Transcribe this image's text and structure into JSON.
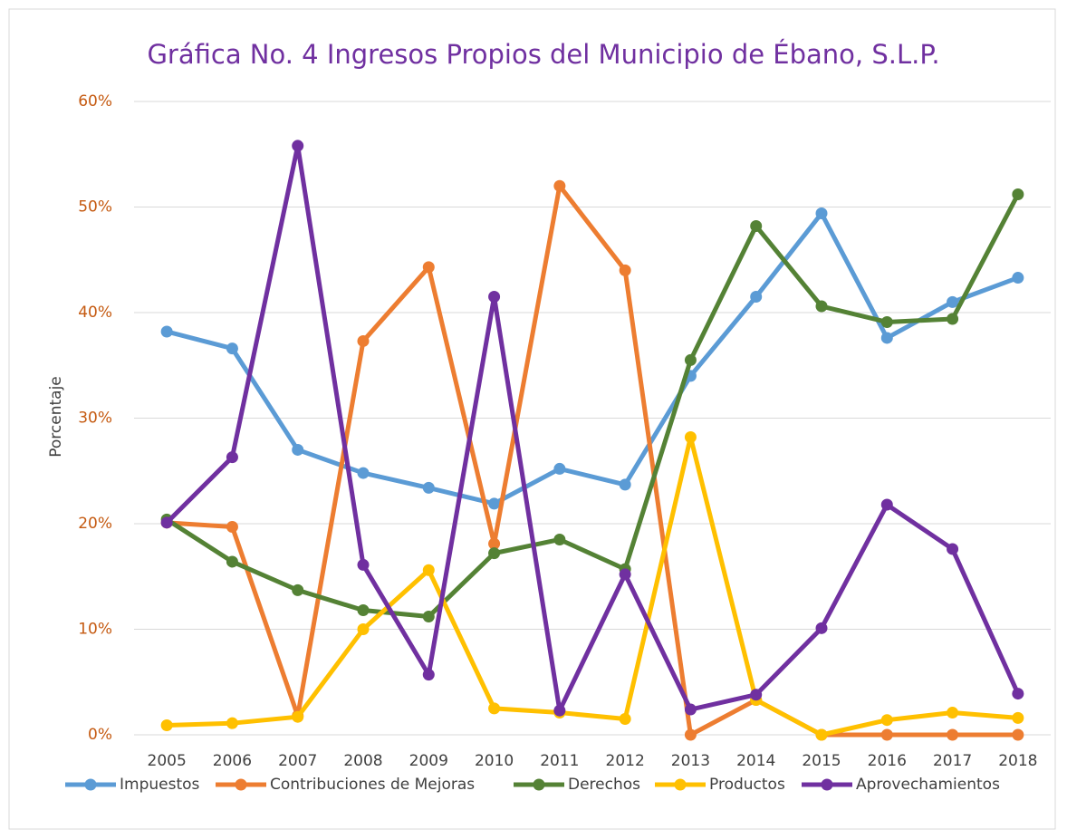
{
  "chart_data": {
    "type": "line",
    "title": "Gráfica No. 4 Ingresos Propios del Municipio de Ébano, S.L.P.",
    "y_label": "Porcentaje",
    "categories": [
      "2005",
      "2006",
      "2007",
      "2008",
      "2009",
      "2010",
      "2011",
      "2012",
      "2013",
      "2014",
      "2015",
      "2016",
      "2017",
      "2018"
    ],
    "series": [
      {
        "name": "Impuestos",
        "color": "#5b9bd5",
        "values": [
          38.2,
          36.6,
          27.0,
          24.8,
          23.4,
          21.9,
          25.2,
          23.7,
          34.0,
          41.5,
          49.4,
          37.6,
          41.0,
          43.3
        ]
      },
      {
        "name": "Contribuciones de Mejoras",
        "color": "#ed7d31",
        "values": [
          20.1,
          19.7,
          1.8,
          37.3,
          44.3,
          18.1,
          52.0,
          44.0,
          0,
          3.3,
          0,
          0,
          0,
          0
        ]
      },
      {
        "name": "Derechos",
        "color": "#548235",
        "values": [
          20.4,
          16.4,
          13.7,
          11.8,
          11.2,
          17.2,
          18.5,
          15.7,
          35.5,
          48.2,
          40.6,
          39.1,
          39.4,
          51.2
        ]
      },
      {
        "name": "Productos",
        "color": "#ffc000",
        "values": [
          0.9,
          1.1,
          1.7,
          10.0,
          15.6,
          2.5,
          2.1,
          1.5,
          28.2,
          3.3,
          0,
          1.4,
          2.1,
          1.6
        ]
      },
      {
        "name": "Aprovechamientos",
        "color": "#7030a0",
        "values": [
          20.1,
          26.3,
          55.8,
          16.1,
          5.7,
          41.5,
          2.3,
          15.2,
          2.4,
          3.8,
          10.1,
          21.8,
          17.6,
          3.9
        ]
      }
    ],
    "ylim": [
      0,
      60
    ],
    "yticks": [
      {
        "value": 0,
        "label": "0%"
      },
      {
        "value": 10,
        "label": "10%"
      },
      {
        "value": 20,
        "label": "20%"
      },
      {
        "value": 30,
        "label": "30%"
      },
      {
        "value": 40,
        "label": "40%"
      },
      {
        "value": 50,
        "label": "50%"
      },
      {
        "value": 60,
        "label": "60%"
      }
    ],
    "grid": true,
    "legend": "bottom"
  }
}
